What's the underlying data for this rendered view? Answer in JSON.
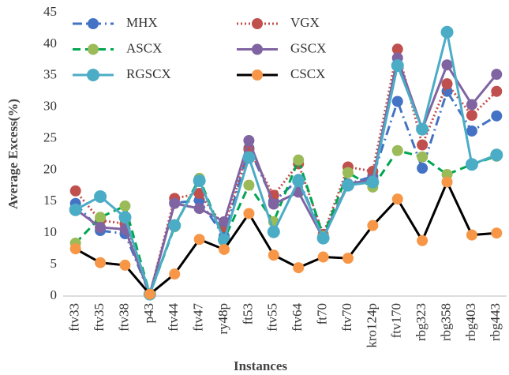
{
  "chart_data": {
    "type": "line",
    "xlabel": "Instances",
    "ylabel": "Average Excess(%)",
    "categories": [
      "ftv33",
      "ftv35",
      "ftv38",
      "p43",
      "ftv44",
      "ftv47",
      "ry48p",
      "ft53",
      "ftv55",
      "ftv64",
      "ft70",
      "ftv70",
      "kro124p",
      "ftv170",
      "rbg323",
      "rbg358",
      "rbg403",
      "rbg443"
    ],
    "ylim": [
      0,
      45
    ],
    "yticks": [
      0,
      5,
      10,
      15,
      20,
      25,
      30,
      35,
      40,
      45
    ],
    "grid": false,
    "legend": "top-left",
    "series": [
      {
        "name": "MHX",
        "color": "#4472c4",
        "marker_color": "#4472c4",
        "dash": "dash-dot",
        "values": [
          14.7,
          10.4,
          9.9,
          0.3,
          14.8,
          15.2,
          9.5,
          23.5,
          15.0,
          18.5,
          9.5,
          17.8,
          19.0,
          30.9,
          20.3,
          32.5,
          26.2,
          28.6
        ]
      },
      {
        "name": "VGX",
        "color": "#c0504d",
        "marker_color": "#c0504d",
        "dash": "dotted",
        "values": [
          16.7,
          12.0,
          11.5,
          0.3,
          15.5,
          16.3,
          11.0,
          23.3,
          16.0,
          21.0,
          9.8,
          20.5,
          19.8,
          39.2,
          24.0,
          33.7,
          28.7,
          32.5
        ]
      },
      {
        "name": "ASCX",
        "color": "#00a651",
        "marker_color": "#9bbb59",
        "dash": "dashed",
        "values": [
          8.4,
          12.5,
          14.3,
          0.3,
          11.0,
          18.7,
          9.0,
          17.6,
          11.8,
          21.6,
          9.5,
          19.6,
          17.3,
          23.1,
          22.1,
          19.3,
          20.9,
          22.2
        ]
      },
      {
        "name": "GSCX",
        "color": "#8064a2",
        "marker_color": "#8064a2",
        "dash": "solid",
        "values": [
          13.8,
          10.9,
          10.6,
          0.3,
          14.7,
          13.9,
          11.8,
          24.7,
          14.6,
          16.5,
          9.2,
          17.8,
          18.5,
          37.8,
          26.5,
          36.7,
          30.4,
          35.2
        ]
      },
      {
        "name": "RGSCX",
        "color": "#4bacc6",
        "marker_color": "#4bacc6",
        "dash": "solid",
        "values": [
          13.7,
          15.8,
          12.5,
          0.3,
          11.2,
          18.3,
          8.9,
          22.0,
          10.2,
          18.3,
          9.2,
          17.6,
          18.1,
          36.6,
          26.5,
          41.9,
          20.9,
          22.4
        ]
      },
      {
        "name": "CSCX",
        "color": "#000000",
        "marker_color": "#f79646",
        "dash": "solid",
        "values": [
          7.5,
          5.3,
          4.9,
          0.3,
          3.5,
          9.0,
          7.4,
          13.1,
          6.5,
          4.5,
          6.2,
          6.0,
          11.2,
          15.4,
          8.8,
          18.1,
          9.7,
          10.0
        ]
      }
    ]
  }
}
